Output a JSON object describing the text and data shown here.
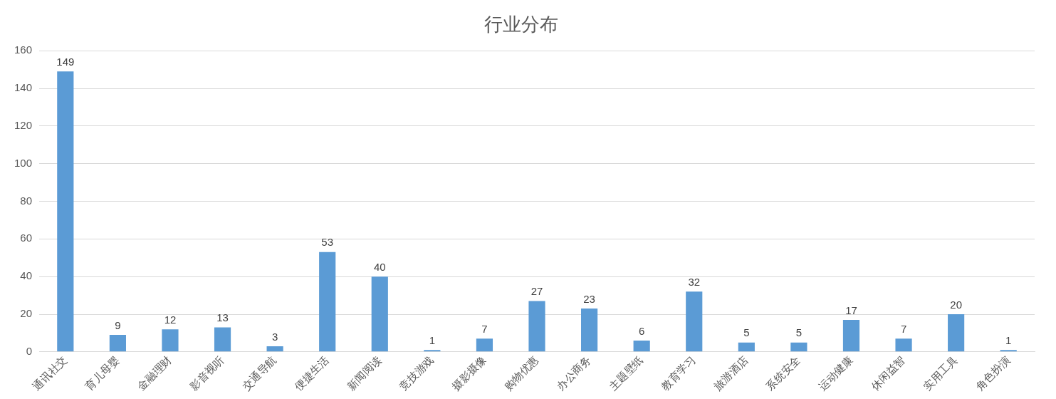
{
  "chart_data": {
    "type": "bar",
    "title": "行业分布",
    "categories": [
      "通讯社交",
      "育儿母婴",
      "金融理财",
      "影音视听",
      "交通导航",
      "便捷生活",
      "新闻阅读",
      "竞技游戏",
      "摄影摄像",
      "购物优惠",
      "办公商务",
      "主题壁纸",
      "教育学习",
      "旅游酒店",
      "系统安全",
      "运动健康",
      "休闲益智",
      "实用工具",
      "角色扮演"
    ],
    "values": [
      149,
      9,
      12,
      13,
      3,
      53,
      40,
      1,
      7,
      27,
      23,
      6,
      32,
      5,
      5,
      17,
      7,
      20,
      1
    ],
    "color": "#5b9bd5",
    "ylim": [
      0,
      160
    ],
    "yticks": [
      0,
      20,
      40,
      60,
      80,
      100,
      120,
      140,
      160
    ],
    "grid": "y",
    "legend": false,
    "data_labels": true
  }
}
